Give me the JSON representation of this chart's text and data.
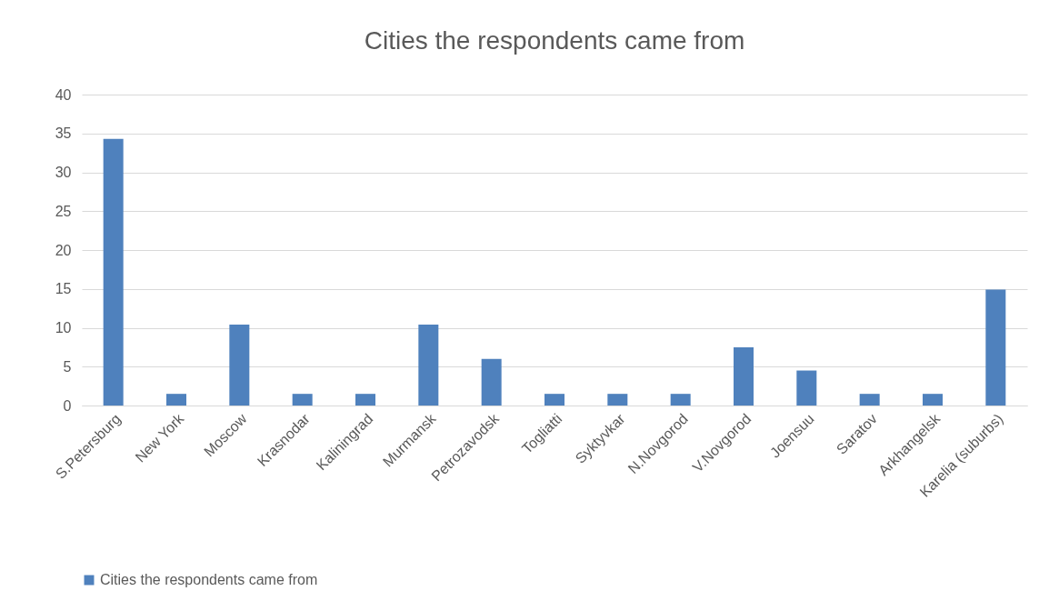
{
  "chart_data": {
    "type": "bar",
    "title": "Cities the respondents came from",
    "categories": [
      "S.Petersburg",
      "New York",
      "Moscow",
      "Krasnodar",
      "Kaliningrad",
      "Murmansk",
      "Petrozavodsk",
      "Togliatti",
      "Syktyvkar",
      "N.Novgorod",
      "V.Novgorod",
      "Joensuu",
      "Saratov",
      "Arkhangelsk",
      "Karelia (suburbs)"
    ],
    "series": [
      {
        "name": "Cities the respondents came from",
        "color": "#4f81bd",
        "values": [
          34.3,
          1.5,
          10.4,
          1.5,
          1.5,
          10.4,
          6.0,
          1.5,
          1.5,
          1.5,
          7.5,
          4.5,
          1.5,
          1.5,
          14.9
        ]
      }
    ],
    "ylim": [
      0,
      40
    ],
    "yticks": [
      0,
      5,
      10,
      15,
      20,
      25,
      30,
      35,
      40
    ],
    "grid": "y",
    "legend": "bottom"
  }
}
